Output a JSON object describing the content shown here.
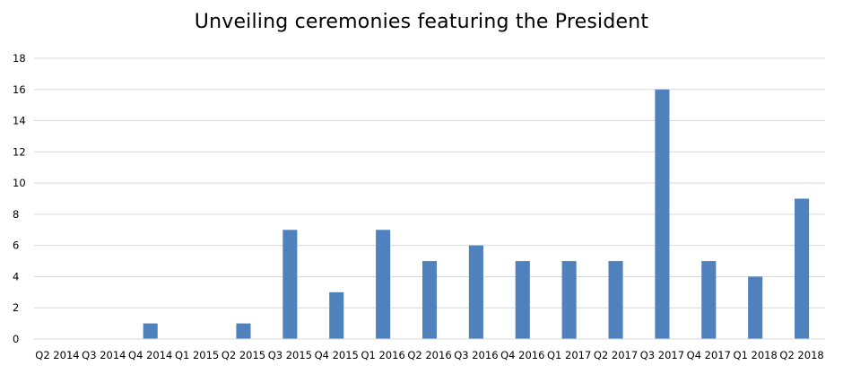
{
  "chart_data": {
    "type": "bar",
    "title": "Unveiling ceremonies featuring the President",
    "xlabel": "",
    "ylabel": "",
    "categories": [
      "Q2 2014",
      "Q3 2014",
      "Q4 2014",
      "Q1 2015",
      "Q2 2015",
      "Q3 2015",
      "Q4 2015",
      "Q1 2016",
      "Q2 2016",
      "Q3 2016",
      "Q4 2016",
      "Q1 2017",
      "Q2 2017",
      "Q3 2017",
      "Q4 2017",
      "Q1 2018",
      "Q2 2018"
    ],
    "values": [
      0,
      0,
      1,
      0,
      1,
      7,
      3,
      7,
      5,
      6,
      5,
      5,
      5,
      16,
      5,
      4,
      9
    ],
    "ylim": [
      0,
      18
    ],
    "yticks": [
      0,
      2,
      4,
      6,
      8,
      10,
      12,
      14,
      16,
      18
    ],
    "grid": true,
    "legend": "none",
    "bar_color": "#4f81bd",
    "grid_color": "#d9d9d9",
    "axis_color": "#d9d9d9"
  }
}
